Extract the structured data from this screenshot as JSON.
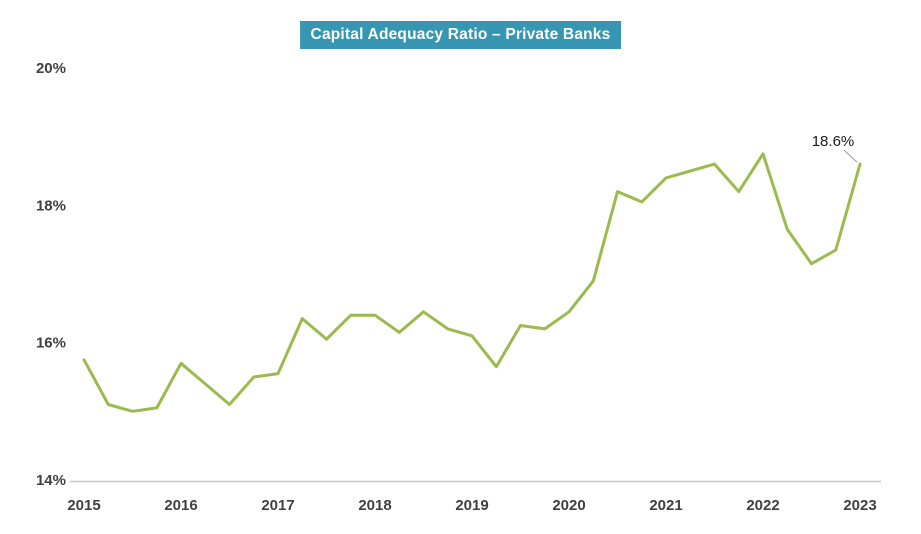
{
  "chart_data": {
    "type": "line",
    "title": "Capital Adequacy Ratio – Private Banks",
    "title_bg": "#3797B2",
    "title_color": "#FFFFFF",
    "line_color": "#9CBB4E",
    "axis_color": "#C6C6C6",
    "tick_color": "#404040",
    "annotation_color": "#1A1A1A",
    "background": "#FFFFFF",
    "grid": false,
    "legend_position": "none",
    "xlim": [
      2015,
      2023
    ],
    "ylim": [
      14,
      20
    ],
    "xlabel": "",
    "ylabel": "",
    "x_tick_values": [
      2015,
      2016,
      2017,
      2018,
      2019,
      2020,
      2021,
      2022,
      2023
    ],
    "x_tick_labels": [
      "2015",
      "2016",
      "2017",
      "2018",
      "2019",
      "2020",
      "2021",
      "2022",
      "2023"
    ],
    "y_tick_values": [
      14,
      16,
      18,
      20
    ],
    "y_tick_labels": [
      "14%",
      "16%",
      "18%",
      "20%"
    ],
    "series": [
      {
        "name": "Capital Adequacy Ratio",
        "x": [
          2015.0,
          2015.25,
          2015.5,
          2015.75,
          2016.0,
          2016.25,
          2016.5,
          2016.75,
          2017.0,
          2017.25,
          2017.5,
          2017.75,
          2018.0,
          2018.25,
          2018.5,
          2018.75,
          2019.0,
          2019.25,
          2019.5,
          2019.75,
          2020.0,
          2020.25,
          2020.5,
          2020.75,
          2021.0,
          2021.25,
          2021.5,
          2021.75,
          2022.0,
          2022.25,
          2022.5,
          2022.75,
          2023.0
        ],
        "values": [
          15.75,
          15.1,
          15.0,
          15.05,
          15.7,
          15.4,
          15.1,
          15.5,
          15.55,
          16.35,
          16.05,
          16.4,
          16.4,
          16.15,
          16.45,
          16.2,
          16.1,
          15.65,
          16.25,
          16.2,
          16.45,
          16.9,
          18.2,
          18.05,
          18.4,
          18.5,
          18.6,
          18.2,
          18.75,
          17.65,
          17.15,
          17.35,
          18.6
        ]
      }
    ],
    "annotation": {
      "label": "18.6%",
      "x": 2023.0,
      "y": 18.6
    }
  }
}
